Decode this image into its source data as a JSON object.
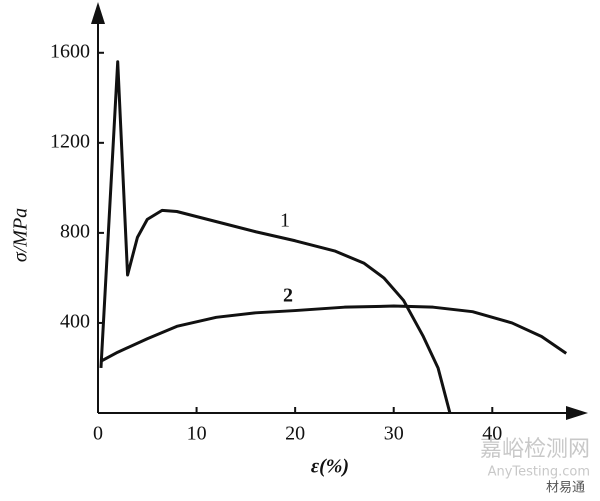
{
  "chart_data": {
    "type": "line",
    "x_label": "ε(%)",
    "y_label": "σ/MPa",
    "xlim": [
      0,
      49
    ],
    "ylim": [
      0,
      1790
    ],
    "xticks": [
      0,
      10,
      20,
      30,
      40
    ],
    "yticks": [
      400,
      800,
      1200,
      1600
    ],
    "series": [
      {
        "name": "1",
        "color": "#111111",
        "x": [
          0.3,
          2,
          3,
          4,
          5,
          6.5,
          8,
          12,
          16,
          20,
          24,
          27,
          29,
          31,
          33,
          34.5,
          35.7
        ],
        "values": [
          200,
          1560,
          613,
          780,
          860,
          900,
          895,
          850,
          805,
          765,
          720,
          665,
          600,
          500,
          340,
          200,
          0
        ]
      },
      {
        "name": "2",
        "color": "#111111",
        "x": [
          0.3,
          2,
          5,
          8,
          12,
          16,
          20,
          25,
          30,
          34,
          38,
          42,
          45,
          47.5
        ],
        "values": [
          230,
          270,
          330,
          385,
          425,
          445,
          455,
          470,
          475,
          470,
          450,
          400,
          340,
          265
        ]
      }
    ],
    "watermark": [
      "嘉峪检测网",
      "AnyTesting.com",
      "材易通"
    ]
  }
}
